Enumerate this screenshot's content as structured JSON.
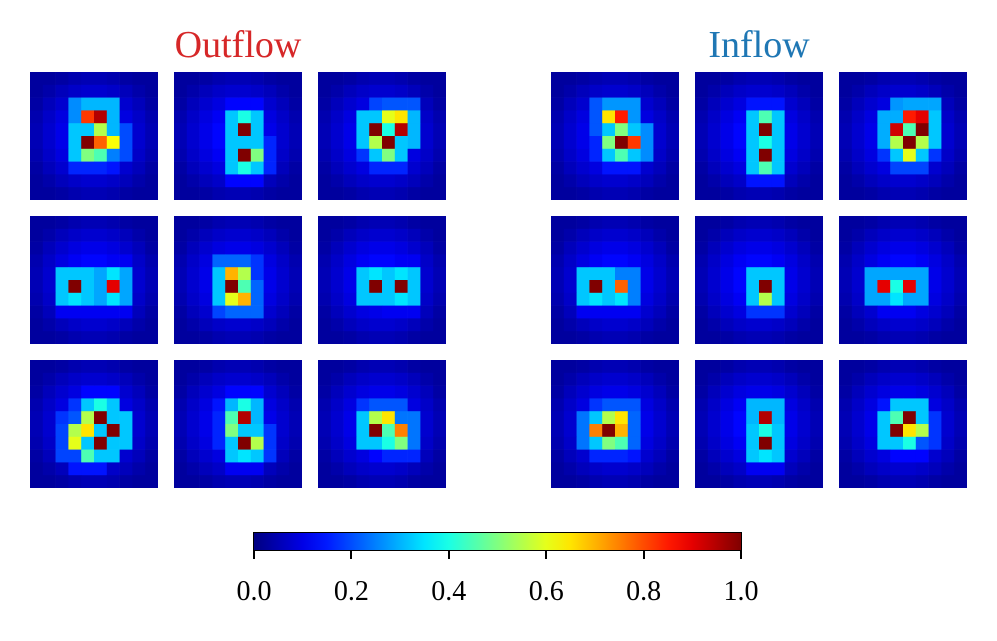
{
  "chart_data": {
    "type": "heatmap",
    "groups": [
      {
        "title": "Outflow",
        "title_color": "#d62728"
      },
      {
        "title": "Inflow",
        "title_color": "#1f77b4"
      }
    ],
    "grid": {
      "rows": 3,
      "cols": 3,
      "cells_per_side": 10
    },
    "colormap": "jet",
    "colorbar": {
      "vmin": 0.0,
      "vmax": 1.0,
      "ticks": [
        "0.0",
        "0.2",
        "0.4",
        "0.6",
        "0.8",
        "1.0"
      ]
    },
    "panels": [
      {
        "group": "Outflow",
        "row": 0,
        "col": 0,
        "peaks": [
          [
            3,
            4,
            0.82
          ],
          [
            3,
            5,
            0.95
          ],
          [
            4,
            5,
            0.55
          ],
          [
            5,
            4,
            1.0
          ],
          [
            5,
            5,
            0.78
          ],
          [
            5,
            6,
            0.62
          ],
          [
            6,
            4,
            0.5
          ],
          [
            6,
            5,
            0.45
          ]
        ]
      },
      {
        "group": "Outflow",
        "row": 0,
        "col": 1,
        "peaks": [
          [
            3,
            5,
            0.4
          ],
          [
            4,
            5,
            1.0
          ],
          [
            5,
            5,
            0.3
          ],
          [
            6,
            5,
            1.0
          ],
          [
            6,
            6,
            0.5
          ],
          [
            7,
            5,
            0.4
          ]
        ]
      },
      {
        "group": "Outflow",
        "row": 0,
        "col": 2,
        "peaks": [
          [
            3,
            5,
            0.6
          ],
          [
            3,
            6,
            0.65
          ],
          [
            4,
            4,
            1.0
          ],
          [
            4,
            5,
            0.4
          ],
          [
            4,
            6,
            0.95
          ],
          [
            5,
            4,
            0.55
          ],
          [
            5,
            5,
            1.0
          ],
          [
            6,
            5,
            0.5
          ]
        ]
      },
      {
        "group": "Outflow",
        "row": 1,
        "col": 0,
        "peaks": [
          [
            4,
            3,
            0.3
          ],
          [
            4,
            6,
            0.35
          ],
          [
            5,
            3,
            1.0
          ],
          [
            5,
            6,
            0.9
          ],
          [
            6,
            3,
            0.35
          ],
          [
            6,
            6,
            0.35
          ]
        ]
      },
      {
        "group": "Outflow",
        "row": 1,
        "col": 1,
        "peaks": [
          [
            4,
            4,
            0.7
          ],
          [
            4,
            5,
            0.55
          ],
          [
            5,
            4,
            1.0
          ],
          [
            5,
            5,
            0.45
          ],
          [
            6,
            4,
            0.6
          ],
          [
            6,
            5,
            0.7
          ]
        ]
      },
      {
        "group": "Outflow",
        "row": 1,
        "col": 2,
        "peaks": [
          [
            4,
            4,
            0.35
          ],
          [
            4,
            6,
            0.35
          ],
          [
            5,
            4,
            1.0
          ],
          [
            5,
            6,
            1.0
          ],
          [
            6,
            4,
            0.3
          ],
          [
            6,
            6,
            0.35
          ]
        ]
      },
      {
        "group": "Outflow",
        "row": 2,
        "col": 0,
        "peaks": [
          [
            3,
            5,
            0.4
          ],
          [
            4,
            4,
            0.55
          ],
          [
            4,
            5,
            1.0
          ],
          [
            5,
            3,
            0.55
          ],
          [
            5,
            4,
            0.65
          ],
          [
            5,
            6,
            1.0
          ],
          [
            6,
            3,
            0.6
          ],
          [
            6,
            5,
            1.0
          ],
          [
            7,
            4,
            0.45
          ]
        ]
      },
      {
        "group": "Outflow",
        "row": 2,
        "col": 1,
        "peaks": [
          [
            3,
            5,
            0.4
          ],
          [
            4,
            4,
            0.45
          ],
          [
            4,
            5,
            0.95
          ],
          [
            5,
            4,
            0.5
          ],
          [
            6,
            5,
            1.0
          ],
          [
            6,
            6,
            0.55
          ],
          [
            7,
            5,
            0.35
          ]
        ]
      },
      {
        "group": "Outflow",
        "row": 2,
        "col": 2,
        "peaks": [
          [
            4,
            4,
            0.55
          ],
          [
            4,
            5,
            0.65
          ],
          [
            5,
            4,
            1.0
          ],
          [
            5,
            5,
            0.45
          ],
          [
            5,
            6,
            0.75
          ],
          [
            6,
            5,
            0.4
          ],
          [
            6,
            6,
            0.5
          ]
        ]
      },
      {
        "group": "Inflow",
        "row": 0,
        "col": 0,
        "peaks": [
          [
            3,
            4,
            0.65
          ],
          [
            3,
            5,
            0.85
          ],
          [
            4,
            5,
            0.5
          ],
          [
            5,
            4,
            0.5
          ],
          [
            5,
            5,
            1.0
          ],
          [
            5,
            6,
            0.82
          ],
          [
            6,
            5,
            0.45
          ]
        ]
      },
      {
        "group": "Inflow",
        "row": 0,
        "col": 1,
        "peaks": [
          [
            3,
            5,
            0.45
          ],
          [
            4,
            5,
            1.0
          ],
          [
            5,
            5,
            0.4
          ],
          [
            6,
            5,
            1.0
          ],
          [
            7,
            5,
            0.45
          ]
        ]
      },
      {
        "group": "Inflow",
        "row": 0,
        "col": 2,
        "peaks": [
          [
            3,
            5,
            0.85
          ],
          [
            3,
            6,
            0.9
          ],
          [
            4,
            4,
            0.92
          ],
          [
            4,
            5,
            0.45
          ],
          [
            4,
            6,
            1.0
          ],
          [
            5,
            4,
            0.55
          ],
          [
            5,
            5,
            1.0
          ],
          [
            5,
            6,
            0.55
          ],
          [
            6,
            5,
            0.6
          ]
        ]
      },
      {
        "group": "Inflow",
        "row": 1,
        "col": 0,
        "peaks": [
          [
            4,
            3,
            0.3
          ],
          [
            5,
            3,
            1.0
          ],
          [
            5,
            5,
            0.78
          ],
          [
            6,
            3,
            0.35
          ],
          [
            6,
            5,
            0.35
          ]
        ]
      },
      {
        "group": "Inflow",
        "row": 1,
        "col": 1,
        "peaks": [
          [
            4,
            5,
            0.3
          ],
          [
            5,
            5,
            1.0
          ],
          [
            6,
            5,
            0.55
          ]
        ]
      },
      {
        "group": "Inflow",
        "row": 1,
        "col": 2,
        "peaks": [
          [
            5,
            3,
            0.9
          ],
          [
            5,
            4,
            0.4
          ],
          [
            5,
            5,
            0.9
          ],
          [
            6,
            4,
            0.35
          ]
        ]
      },
      {
        "group": "Inflow",
        "row": 2,
        "col": 0,
        "peaks": [
          [
            4,
            4,
            0.55
          ],
          [
            4,
            5,
            0.65
          ],
          [
            5,
            3,
            0.75
          ],
          [
            5,
            4,
            1.0
          ],
          [
            5,
            5,
            0.7
          ],
          [
            6,
            4,
            0.5
          ],
          [
            6,
            5,
            0.45
          ]
        ]
      },
      {
        "group": "Inflow",
        "row": 2,
        "col": 1,
        "peaks": [
          [
            3,
            5,
            0.3
          ],
          [
            4,
            5,
            0.95
          ],
          [
            5,
            5,
            0.4
          ],
          [
            6,
            5,
            1.0
          ],
          [
            7,
            5,
            0.35
          ]
        ]
      },
      {
        "group": "Inflow",
        "row": 2,
        "col": 2,
        "peaks": [
          [
            4,
            4,
            0.45
          ],
          [
            4,
            5,
            1.0
          ],
          [
            5,
            4,
            1.0
          ],
          [
            5,
            5,
            0.65
          ],
          [
            5,
            6,
            0.55
          ],
          [
            6,
            5,
            0.4
          ]
        ]
      }
    ]
  }
}
